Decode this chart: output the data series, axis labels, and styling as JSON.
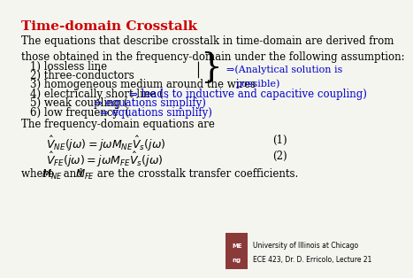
{
  "title": "Time-domain Crosstalk",
  "title_color": "#cc0000",
  "bg_color": "#f5f5f0",
  "body_color": "#000000",
  "blue_color": "#0000cc",
  "intro_text": "The equations that describe crosstalk in time-domain are derived from\nthose obtained in the frequency-domain under the following assumption:",
  "items_black": [
    "1) lossless line",
    "2) three-conductors",
    "3) homogeneous medium around the wires",
    "4) electrically short line (",
    "5) weak coupling (",
    "6) low frequency  ("
  ],
  "brace_annotation": "⇒(Analytical solution is\n    possible)",
  "item4_blue": "⇒ leads to inductive and capacitive coupling)",
  "item5_blue": "⇒ equations simplify)",
  "item6_blue": "⇒ equations simplify)",
  "freq_text": "The frequency-domain equations are",
  "eq1": "$\\hat{V}_{NE}(j\\omega) = j\\omega M_{NE}\\hat{V}_s(j\\omega)$",
  "eq2": "$\\hat{V}_{FE}(j\\omega) = j\\omega M_{FE}\\hat{V}_s(j\\omega)$",
  "eq1_label": "(1)",
  "eq2_label": "(2)",
  "where_text_1": "where ",
  "where_math_1": "$M_{NE}$",
  "where_text_2": " and ",
  "where_math_2": "$M_{FE}$",
  "where_text_3": " are the crosstalk transfer coefficients.",
  "logo_text1": "University of Illinois at Chicago",
  "logo_text2": "ECE 423, Dr. D. Erricolo, Lecture 21",
  "logo_bg": "#e8e8c0",
  "logo_label": "ME\nng"
}
